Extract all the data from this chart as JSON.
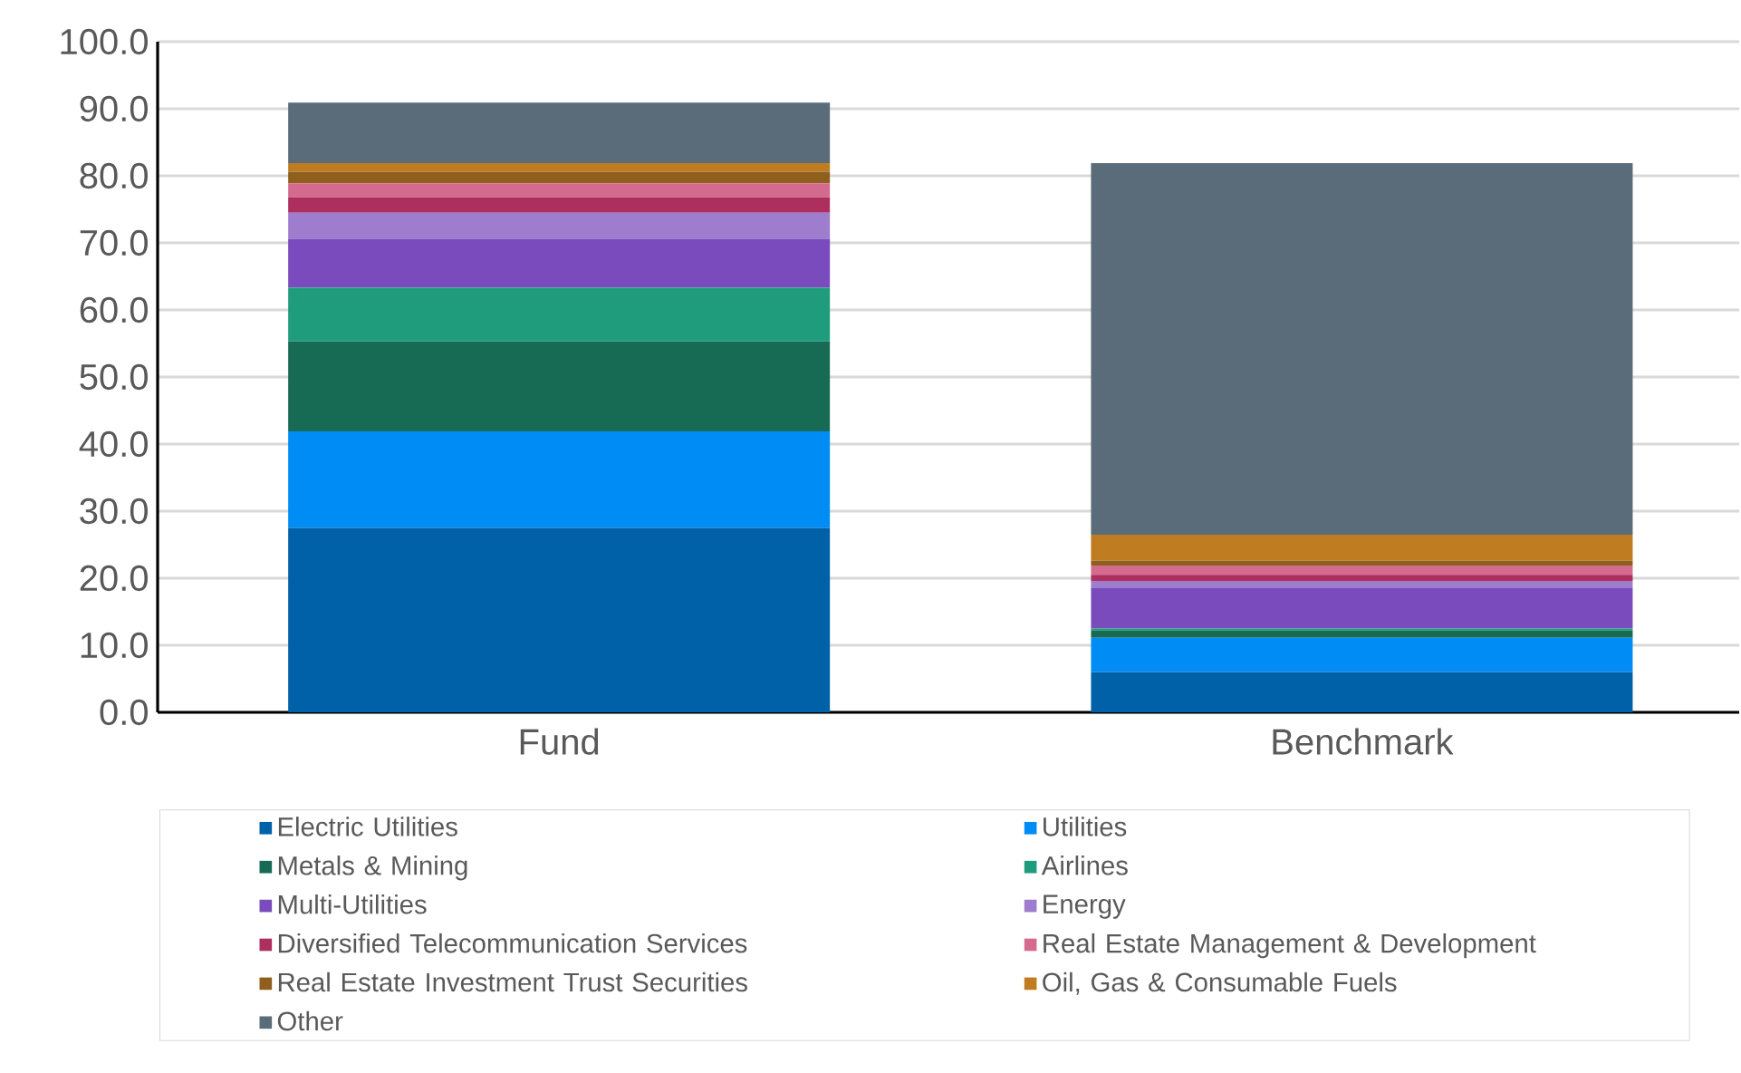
{
  "chart_data": {
    "type": "bar",
    "stacked": true,
    "categories": [
      "Fund",
      "Benchmark"
    ],
    "series": [
      {
        "name": "Electric Utilities",
        "color": "#0060a8",
        "values": [
          27.5,
          6.0
        ]
      },
      {
        "name": "Utilities",
        "color": "#008cf5",
        "values": [
          14.4,
          5.1
        ]
      },
      {
        "name": "Metals & Mining",
        "color": "#176b54",
        "values": [
          13.4,
          1.1
        ]
      },
      {
        "name": "Airlines",
        "color": "#1f9c7c",
        "values": [
          8.0,
          0.3
        ]
      },
      {
        "name": "Multi-Utilities",
        "color": "#7a4bbc",
        "values": [
          7.3,
          6.0
        ]
      },
      {
        "name": "Energy",
        "color": "#9e7dce",
        "values": [
          3.9,
          1.1
        ]
      },
      {
        "name": "Diversified Telecommunication Services",
        "color": "#ad2f5e",
        "values": [
          2.3,
          0.9
        ]
      },
      {
        "name": "Real Estate Management & Development",
        "color": "#d46a8e",
        "values": [
          2.1,
          1.4
        ]
      },
      {
        "name": "Real Estate Investment Trust Securities",
        "color": "#8f5f1e",
        "values": [
          1.7,
          0.7
        ]
      },
      {
        "name": "Oil, Gas & Consumable Fuels",
        "color": "#bf7c20",
        "values": [
          1.3,
          3.9
        ]
      },
      {
        "name": "Other",
        "color": "#5a6b7a",
        "values": [
          9.0,
          55.4
        ]
      }
    ],
    "ylim": [
      0,
      100
    ],
    "yticks": [
      {
        "value": 0,
        "label": "0.0"
      },
      {
        "value": 10,
        "label": "10.0"
      },
      {
        "value": 20,
        "label": "20.0"
      },
      {
        "value": 30,
        "label": "30.0"
      },
      {
        "value": 40,
        "label": "40.0"
      },
      {
        "value": 50,
        "label": "50.0"
      },
      {
        "value": 60,
        "label": "60.0"
      },
      {
        "value": 70,
        "label": "70.0"
      },
      {
        "value": 80,
        "label": "80.0"
      },
      {
        "value": 90,
        "label": "90.0"
      },
      {
        "value": 100,
        "label": "100.0"
      }
    ],
    "grid": "y",
    "legend": "bottom"
  }
}
